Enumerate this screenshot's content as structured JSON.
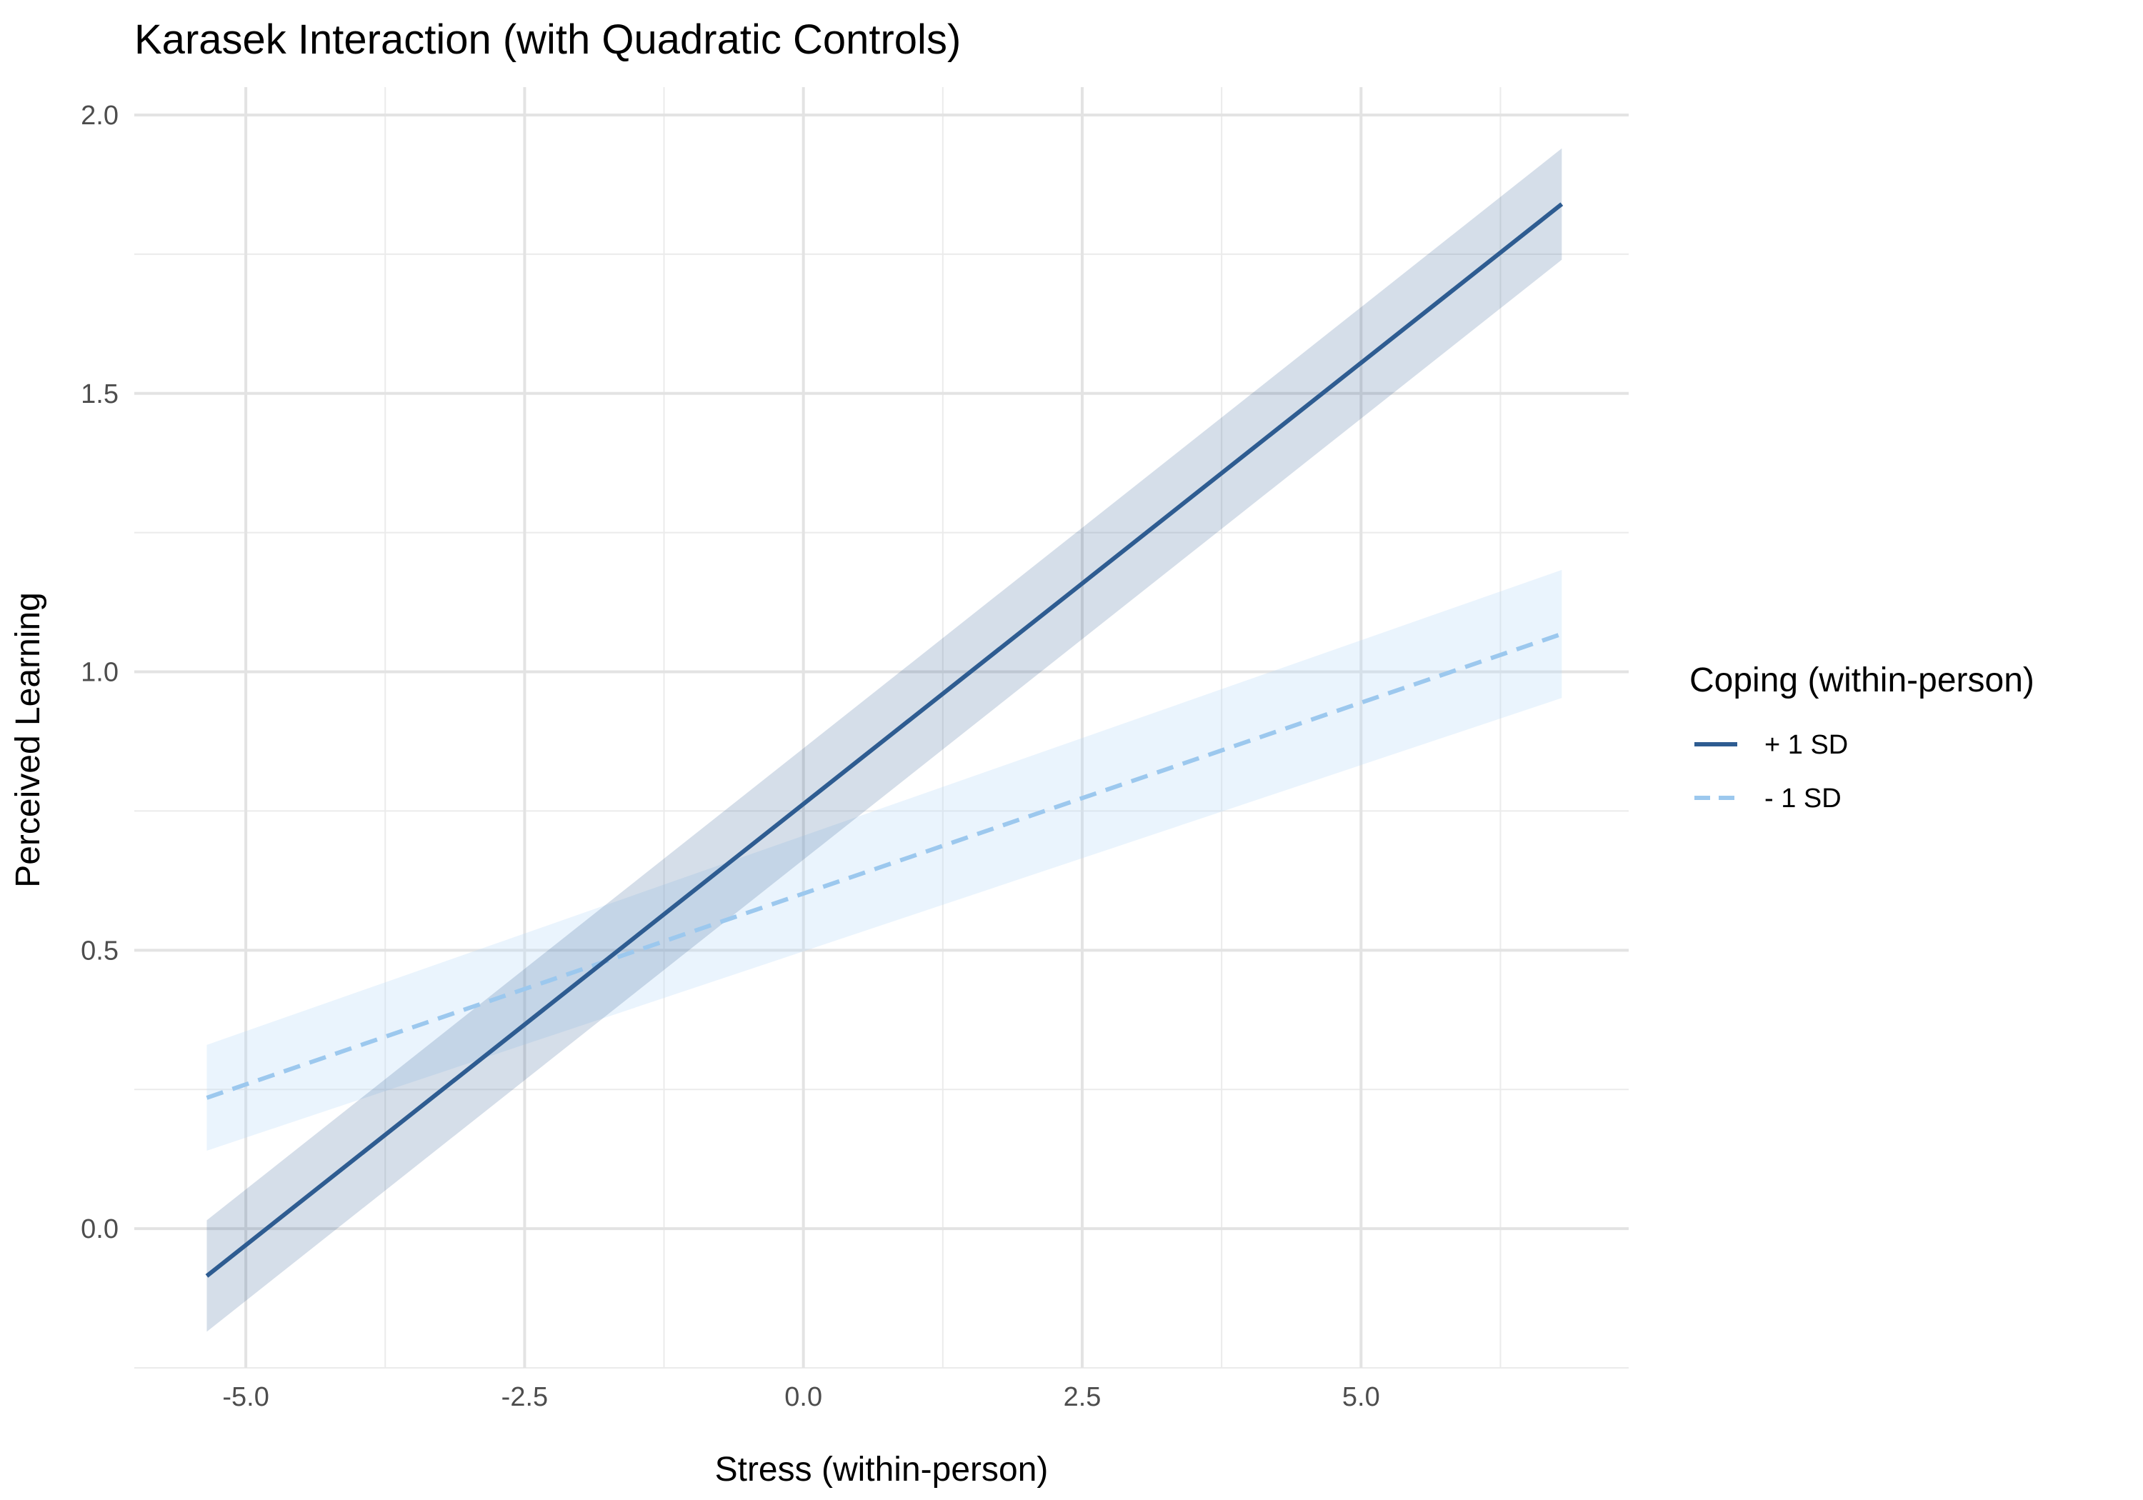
{
  "chart_data": {
    "type": "line",
    "title": "Karasek Interaction (with Quadratic Controls)",
    "xlabel": "Stress (within-person)",
    "ylabel": "Perceived Learning",
    "xlim": [
      -6.0,
      7.4
    ],
    "ylim": [
      -0.25,
      2.05
    ],
    "x_ticks": [
      -5.0,
      -2.5,
      0.0,
      2.5,
      5.0
    ],
    "x_tick_labels": [
      "-5.0",
      "-2.5",
      "0.0",
      "2.5",
      "5.0"
    ],
    "y_ticks": [
      0.0,
      0.5,
      1.0,
      1.5,
      2.0
    ],
    "y_tick_labels": [
      "0.0",
      "0.5",
      "1.0",
      "1.5",
      "2.0"
    ],
    "grid": true,
    "legend": {
      "title": "Coping (within-person)",
      "placement": "right"
    },
    "series": [
      {
        "name": "+ 1 SD",
        "color": "#2E5C91",
        "band_color": "#2E5C91",
        "dash": "solid",
        "x": [
          -5.35,
          6.8
        ],
        "y": [
          -0.085,
          1.84
        ],
        "lower": [
          -0.185,
          1.74
        ],
        "upper": [
          0.015,
          1.94
        ]
      },
      {
        "name": "- 1 SD",
        "color": "#9CC8EE",
        "band_color": "#B9DCF8",
        "dash": "dashed",
        "x": [
          -5.35,
          6.8
        ],
        "y": [
          0.235,
          1.068
        ],
        "lower": [
          0.14,
          0.953
        ],
        "upper": [
          0.33,
          1.183
        ]
      }
    ]
  }
}
